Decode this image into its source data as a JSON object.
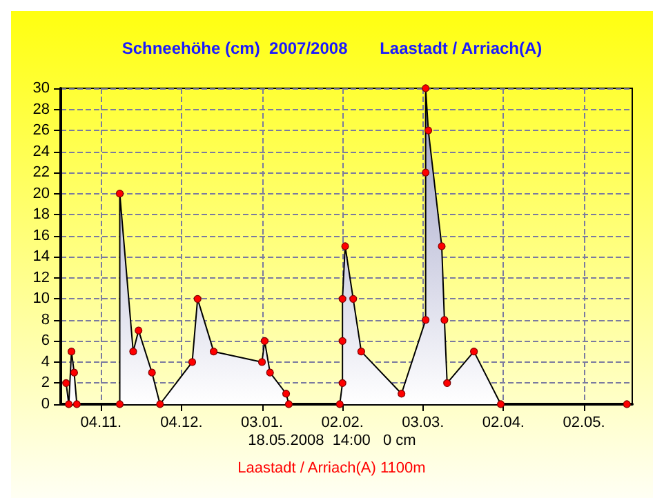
{
  "chart_data": {
    "type": "area",
    "title": "Schneehöhe (cm)  2007/2008       Laastadt / Arriach(A)",
    "x": [
      "2007-10-22",
      "2007-10-23",
      "2007-10-24",
      "2007-10-25",
      "2007-10-26",
      "2007-11-11",
      "2007-11-11",
      "2007-11-16",
      "2007-11-18",
      "2007-11-23",
      "2007-11-26",
      "2007-12-08",
      "2007-12-10",
      "2007-12-16",
      "2008-01-03",
      "2008-01-04",
      "2008-01-06",
      "2008-01-12",
      "2008-01-13",
      "2008-02-01",
      "2008-02-02",
      "2008-02-02",
      "2008-02-02",
      "2008-02-03",
      "2008-02-06",
      "2008-02-09",
      "2008-02-24",
      "2008-03-04",
      "2008-03-04",
      "2008-03-04",
      "2008-03-05",
      "2008-03-10",
      "2008-03-11",
      "2008-03-12",
      "2008-03-22",
      "2008-04-01",
      "2008-05-18"
    ],
    "series": [
      {
        "color": "#9a9cc4",
        "values": [
          2,
          0,
          5,
          3,
          0,
          0,
          20,
          5,
          7,
          3,
          0,
          4,
          10,
          5,
          4,
          6,
          3,
          1,
          0,
          0,
          2,
          6,
          10,
          15,
          10,
          5,
          1,
          8,
          22,
          30,
          26,
          15,
          8,
          2,
          5,
          0,
          0
        ]
      }
    ],
    "xlim": [
      "2007-10-20",
      "2008-05-20"
    ],
    "xticks": [
      {
        "value": "2007-11-04",
        "label": "04.11."
      },
      {
        "value": "2007-12-04",
        "label": "04.12."
      },
      {
        "value": "2008-01-03",
        "label": "03.01."
      },
      {
        "value": "2008-02-02",
        "label": "02.02."
      },
      {
        "value": "2008-03-03",
        "label": "03.03."
      },
      {
        "value": "2008-04-02",
        "label": "02.04."
      },
      {
        "value": "2008-05-02",
        "label": "02.05."
      }
    ],
    "ylim": [
      0,
      30
    ],
    "yticks": [
      0,
      2,
      4,
      6,
      8,
      10,
      12,
      14,
      16,
      18,
      20,
      22,
      24,
      26,
      28,
      30
    ],
    "grid": true,
    "marker": "circle",
    "line_style": "solid",
    "annotations": [
      "18.05.2008  14:00   0 cm",
      "Laastadt / Arriach(A) 1100m"
    ]
  }
}
